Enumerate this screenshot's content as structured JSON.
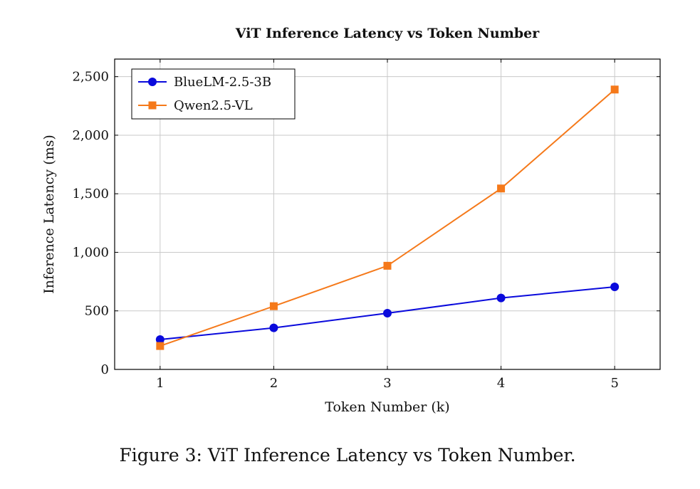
{
  "chart_data": {
    "type": "line",
    "title": "ViT Inference Latency vs Token Number",
    "xlabel": "Token Number (k)",
    "ylabel": "Inference Latency (ms)",
    "x": [
      1,
      2,
      3,
      4,
      5
    ],
    "x_tick_labels": [
      "1",
      "2",
      "3",
      "4",
      "5"
    ],
    "xlim": [
      0.6,
      5.4
    ],
    "ylim": [
      0,
      2650
    ],
    "y_ticks": [
      0,
      500,
      1000,
      1500,
      2000,
      2500
    ],
    "y_tick_labels": [
      "0",
      "500",
      "1,000",
      "1,500",
      "2,000",
      "2,500"
    ],
    "grid": true,
    "legend_position": "top-left",
    "series": [
      {
        "name": "BlueLM-2.5-3B",
        "color": "#0a0adc",
        "marker": "circle",
        "values": [
          255,
          355,
          480,
          610,
          705
        ]
      },
      {
        "name": "Qwen2.5-VL",
        "color": "#f5791a",
        "marker": "square",
        "values": [
          200,
          540,
          885,
          1545,
          2390
        ]
      }
    ]
  },
  "caption": "Figure 3: ViT Inference Latency vs Token Number."
}
